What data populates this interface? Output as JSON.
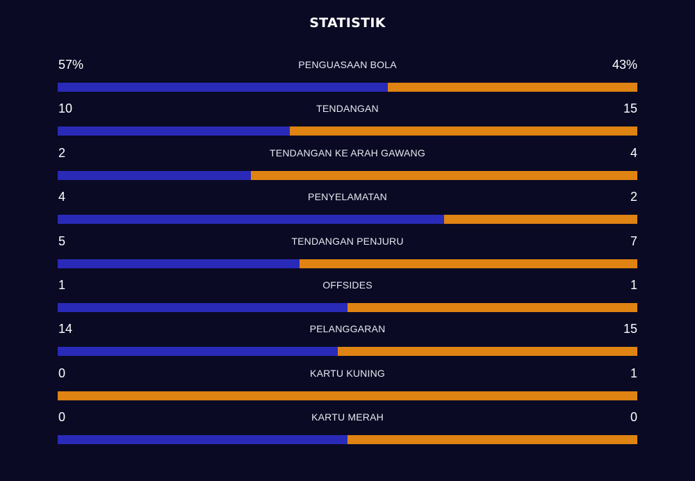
{
  "title": "STATISTIK",
  "colors": {
    "background": "#0a0a24",
    "home": "#2a2ab8",
    "away": "#df8312"
  },
  "stats": [
    {
      "label": "PENGUASAAN BOLA",
      "home": "57%",
      "away": "43%",
      "home_share": 0.57
    },
    {
      "label": "TENDANGAN",
      "home": "10",
      "away": "15",
      "home_share": 0.4
    },
    {
      "label": "TENDANGAN KE ARAH GAWANG",
      "home": "2",
      "away": "4",
      "home_share": 0.3333
    },
    {
      "label": "PENYELAMATAN",
      "home": "4",
      "away": "2",
      "home_share": 0.6667
    },
    {
      "label": "TENDANGAN PENJURU",
      "home": "5",
      "away": "7",
      "home_share": 0.4167
    },
    {
      "label": "OFFSIDES",
      "home": "1",
      "away": "1",
      "home_share": 0.5
    },
    {
      "label": "PELANGGARAN",
      "home": "14",
      "away": "15",
      "home_share": 0.4828
    },
    {
      "label": "KARTU KUNING",
      "home": "0",
      "away": "1",
      "home_share": 0.0
    },
    {
      "label": "KARTU MERAH",
      "home": "0",
      "away": "0",
      "home_share": 0.5
    }
  ]
}
